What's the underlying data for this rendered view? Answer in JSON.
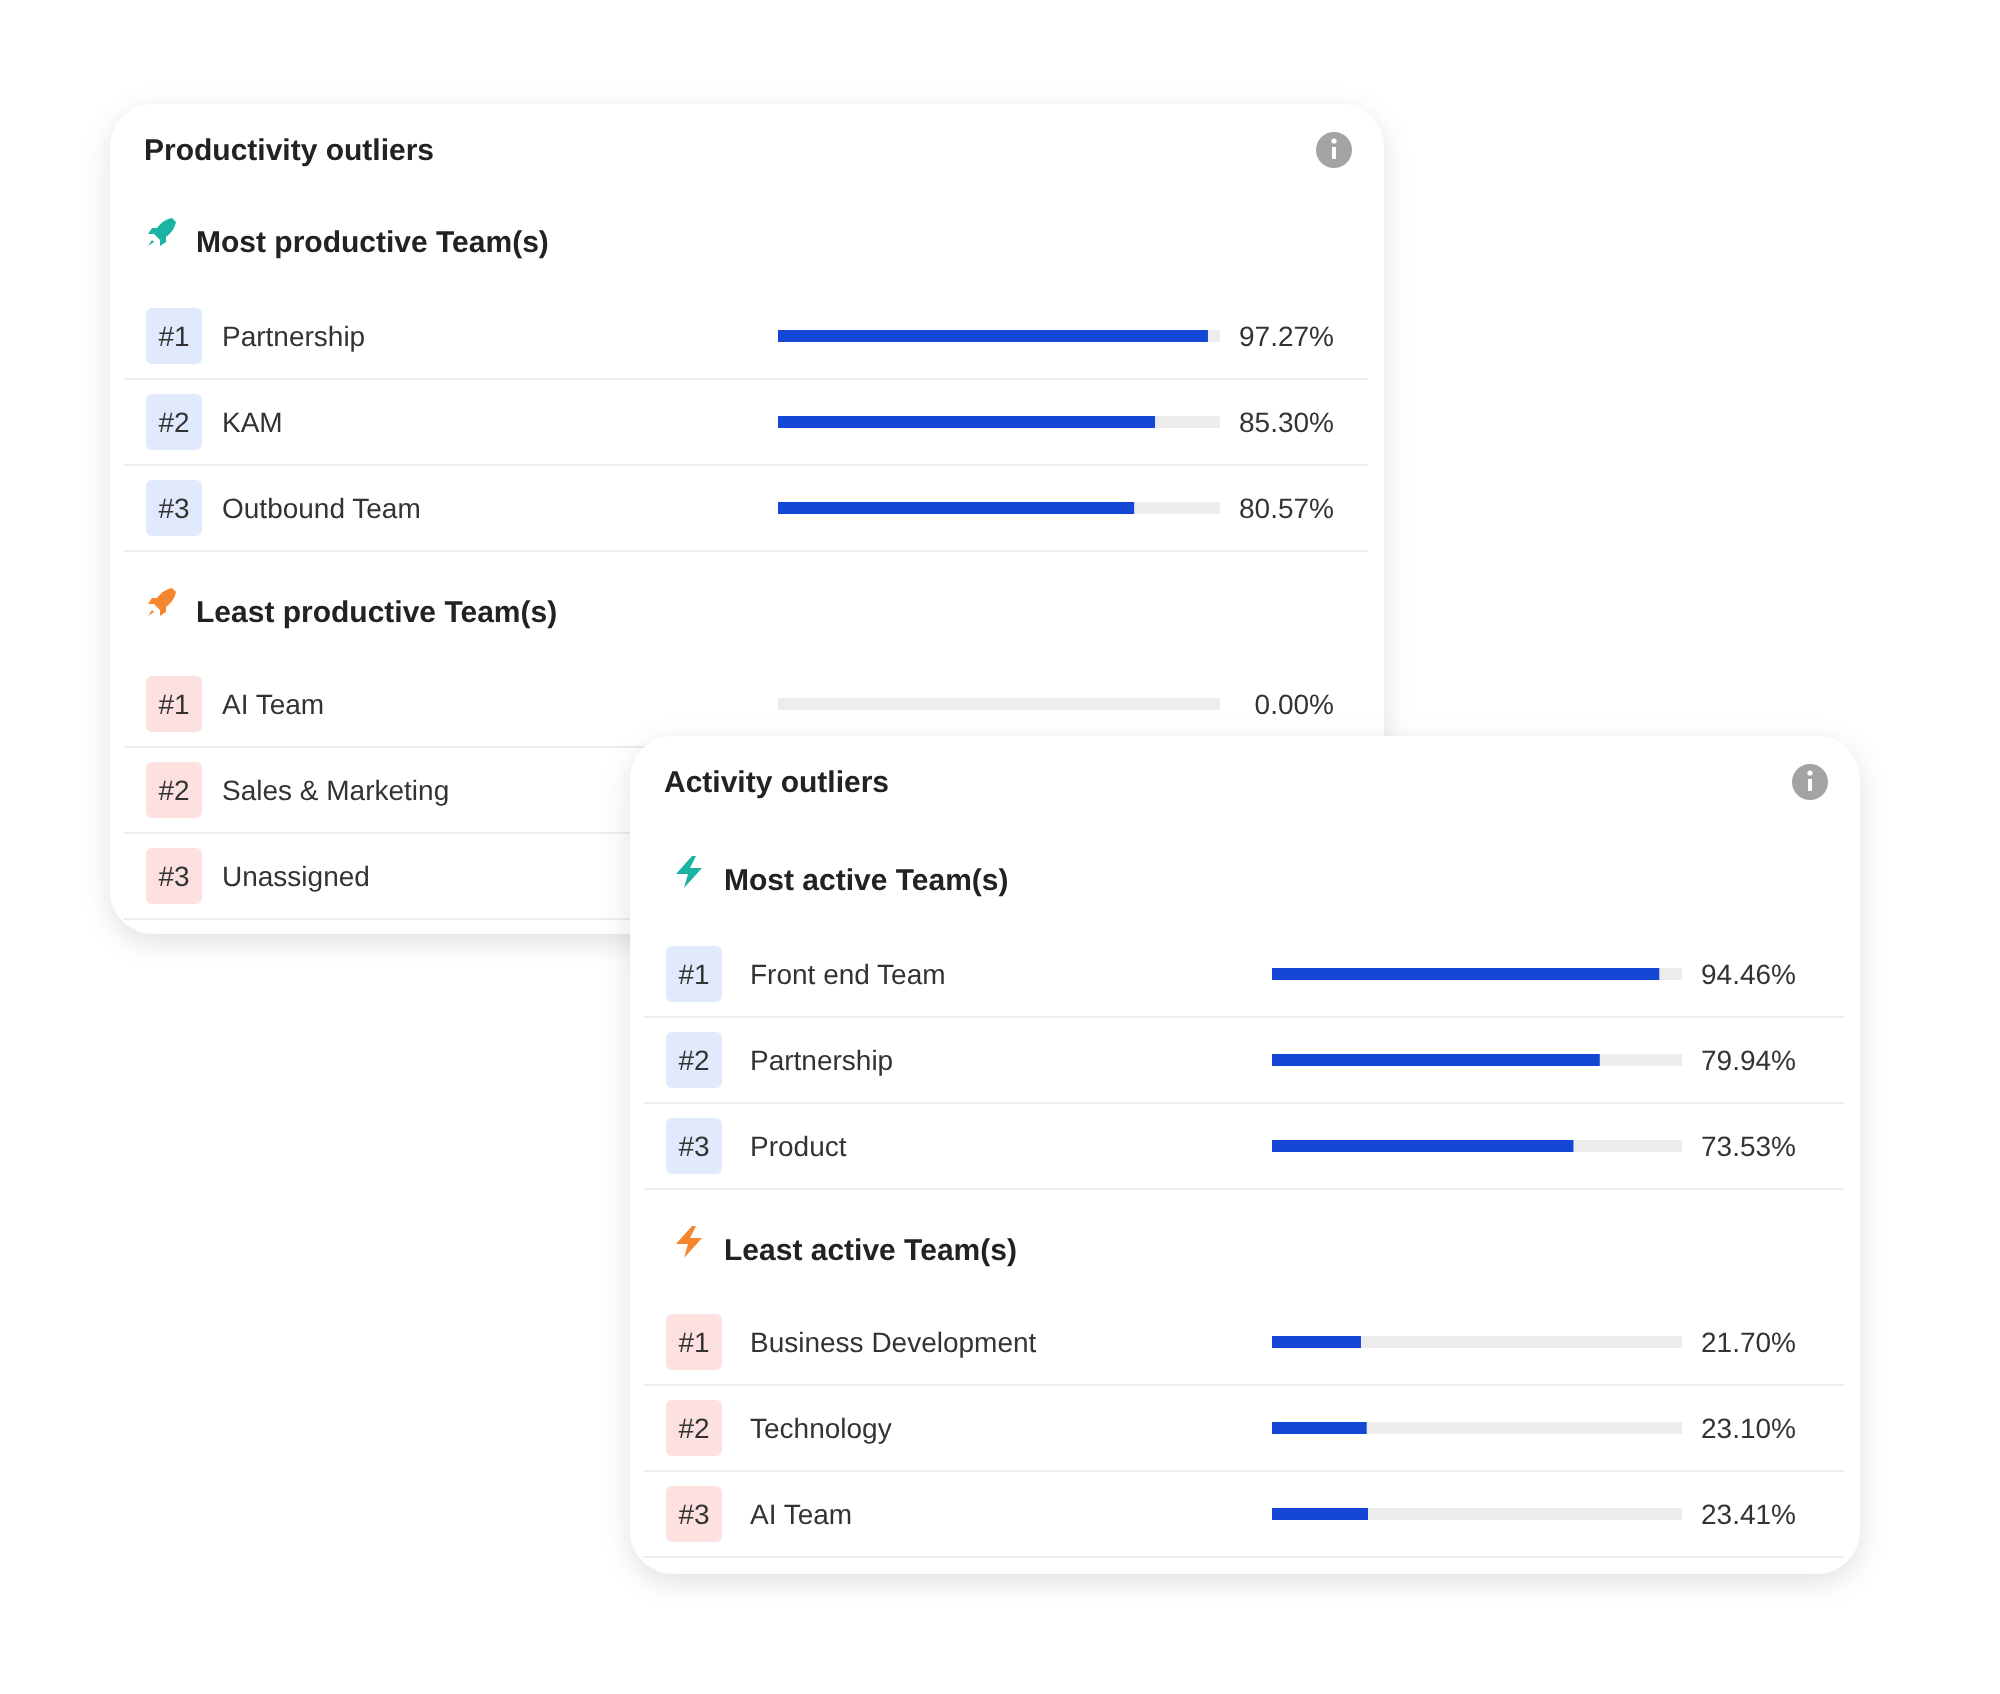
{
  "chart_data": [
    {
      "type": "bar",
      "orientation": "horizontal",
      "title": "Productivity outliers",
      "subtitle": "Most productive Team(s)",
      "categories": [
        "Partnership",
        "KAM",
        "Outbound Team"
      ],
      "values": [
        97.27,
        85.3,
        80.57
      ],
      "value_labels": [
        "97.27%",
        "85.30%",
        "80.57%"
      ],
      "color": "#1447d4",
      "xlim": [
        0,
        100
      ],
      "annotations": [
        "#1",
        "#2",
        "#3"
      ]
    },
    {
      "type": "other",
      "subtitle": "Least productive Team(s)",
      "categories": [
        "AI Team",
        "Sales & Marketing",
        "Unassigned"
      ],
      "value_labels": [
        "0.00%",
        null,
        null
      ],
      "annotations": [
        "#1",
        "#2",
        "#3"
      ]
    },
    {
      "type": "bar",
      "orientation": "horizontal",
      "title": "Activity outliers",
      "subtitle": "Most active Team(s)",
      "categories": [
        "Front end Team",
        "Partnership",
        "Product"
      ],
      "values": [
        94.46,
        79.94,
        73.53
      ],
      "value_labels": [
        "94.46%",
        "79.94%",
        "73.53%"
      ],
      "color": "#1447d4",
      "xlim": [
        0,
        100
      ],
      "annotations": [
        "#1",
        "#2",
        "#3"
      ]
    },
    {
      "type": "bar",
      "orientation": "horizontal",
      "subtitle": "Least active Team(s)",
      "categories": [
        "Business Development",
        "Technology",
        "AI Team"
      ],
      "values": [
        21.7,
        23.1,
        23.41
      ],
      "value_labels": [
        "21.70%",
        "23.10%",
        "23.41%"
      ],
      "color": "#1447d4",
      "xlim": [
        0,
        100
      ],
      "annotations": [
        "#1",
        "#2",
        "#3"
      ]
    }
  ]
}
